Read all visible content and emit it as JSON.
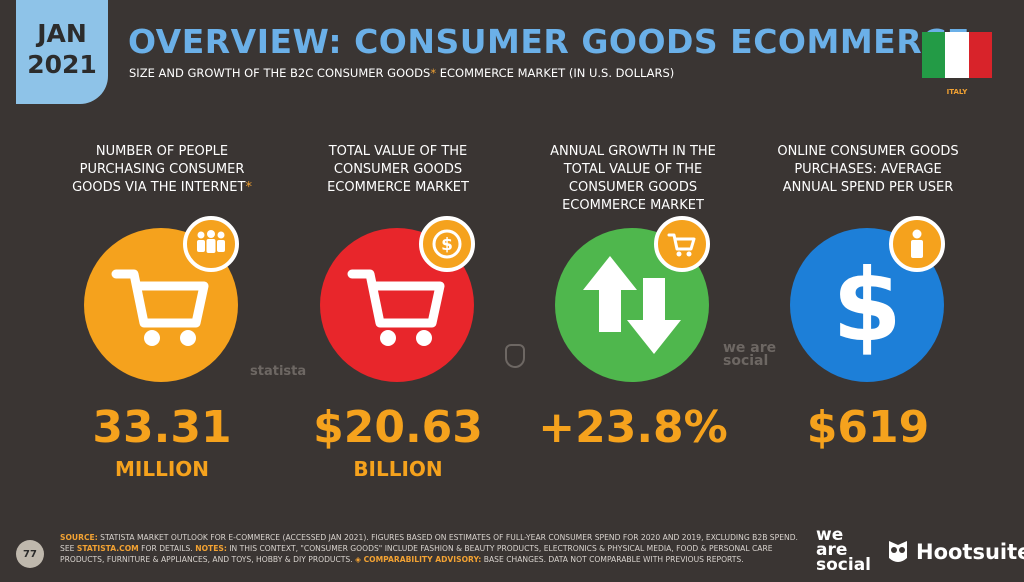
{
  "header": {
    "date_line1": "JAN",
    "date_line2": "2021",
    "title": "OVERVIEW: CONSUMER GOODS ECOMMERCE",
    "subtitle_main": "SIZE AND GROWTH OF THE B2C CONSUMER GOODS",
    "subtitle_asterisk": "*",
    "subtitle_rest": " ECOMMERCE MARKET (IN U.S. DOLLARS)",
    "country": "ITALY"
  },
  "colors": {
    "background": "#3a3533",
    "accent_orange": "#f5a21d",
    "title_blue": "#6bb0e8",
    "flag": [
      "#239b46",
      "#ffffff",
      "#d8232a"
    ]
  },
  "stats": [
    {
      "label": "NUMBER OF PEOPLE PURCHASING CONSUMER GOODS VIA THE INTERNET",
      "asterisk": "*",
      "value": "33.31",
      "unit": "MILLION",
      "circle_color": "#f5a21d",
      "icon": "shopping-cart-icon",
      "badge_icon": "people-icon"
    },
    {
      "label": "TOTAL VALUE OF THE CONSUMER GOODS ECOMMERCE MARKET",
      "asterisk": "",
      "value": "$20.63",
      "unit": "BILLION",
      "circle_color": "#e8262b",
      "icon": "shopping-cart-icon",
      "badge_icon": "dollar-coin-icon"
    },
    {
      "label": "ANNUAL GROWTH IN THE TOTAL VALUE OF THE CONSUMER GOODS ECOMMERCE MARKET",
      "asterisk": "",
      "value": "+23.8%",
      "unit": "",
      "circle_color": "#4fb74d",
      "icon": "up-down-arrows-icon",
      "badge_icon": "shopping-cart-icon"
    },
    {
      "label": "ONLINE CONSUMER GOODS PURCHASES: AVERAGE ANNUAL SPEND PER USER",
      "asterisk": "",
      "value": "$619",
      "unit": "",
      "circle_color": "#1d7fd8",
      "icon": "dollar-icon",
      "badge_icon": "person-icon"
    }
  ],
  "watermarks": {
    "statista": "statista",
    "we_are_social": "we are social"
  },
  "footer": {
    "page_number": "77",
    "source_key": "SOURCE:",
    "source_text": " STATISTA MARKET OUTLOOK FOR E-COMMERCE (ACCESSED JAN 2021). FIGURES BASED ON ESTIMATES OF FULL-YEAR CONSUMER SPEND FOR 2020 AND 2019, EXCLUDING B2B SPEND. SEE ",
    "source_link": "STATISTA.COM",
    "source_tail": " FOR DETAILS.",
    "notes_key": "NOTES:",
    "notes_text": " IN THIS CONTEXT, \"CONSUMER GOODS\" INCLUDE FASHION & BEAUTY PRODUCTS, ELECTRONICS & PHYSICAL MEDIA, FOOD & PERSONAL CARE PRODUCTS, FURNITURE & APPLIANCES, AND TOYS, HOBBY & DIY PRODUCTS.",
    "advisory_key": "◈ COMPARABILITY ADVISORY:",
    "advisory_text": " BASE CHANGES. DATA NOT COMPARABLE WITH PREVIOUS REPORTS.",
    "logo_we_are_social": "we are social",
    "logo_hootsuite": "Hootsuite"
  }
}
